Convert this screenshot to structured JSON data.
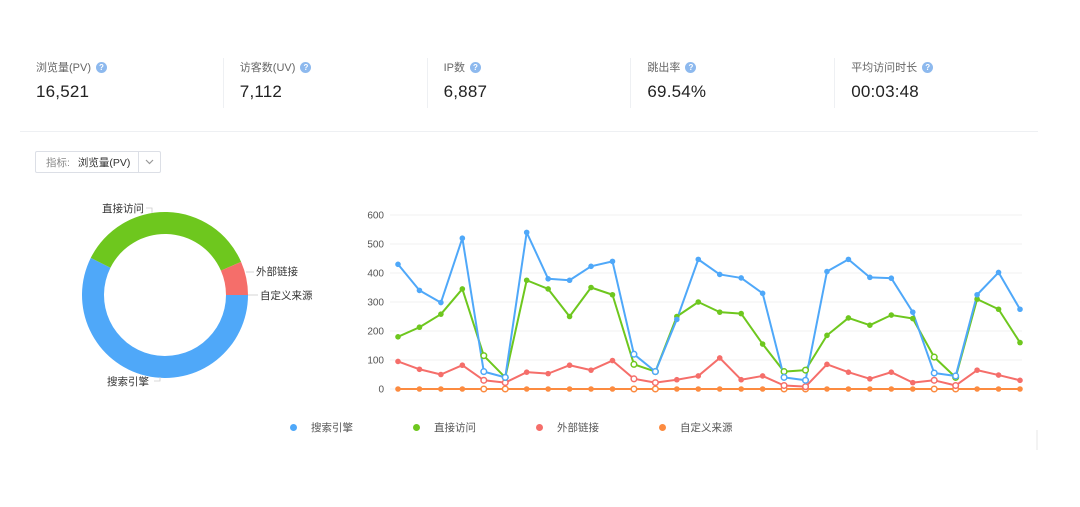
{
  "stats": [
    {
      "label": "浏览量(PV)",
      "value": "16,521",
      "help_icon": "question-circle-icon"
    },
    {
      "label": "访客数(UV)",
      "value": "7,112",
      "help_icon": "question-circle-icon"
    },
    {
      "label": "IP数",
      "value": "6,887",
      "help_icon": "question-circle-icon"
    },
    {
      "label": "跳出率",
      "value": "69.54%",
      "help_icon": "question-circle-icon"
    },
    {
      "label": "平均访问时长",
      "value": "00:03:48",
      "help_icon": "question-circle-icon"
    }
  ],
  "selector": {
    "label": "指标:",
    "value": "浏览量(PV)",
    "icon": "chevron-down-icon"
  },
  "colors": {
    "search": "#4fa8f9",
    "direct": "#6ec71e",
    "external": "#f56e6a",
    "custom": "#fc8b40"
  },
  "chart_data": [
    {
      "type": "pie",
      "subtype": "donut",
      "categories": [
        "搜索引擎",
        "直接访问",
        "外部链接",
        "自定义来源"
      ],
      "values": [
        9480,
        5960,
        1081,
        0
      ],
      "percent_estimate": [
        57.4,
        36.1,
        6.5,
        0.0
      ],
      "labels_visible": [
        "直接访问",
        "外部链接",
        "自定义来源",
        "搜索引擎"
      ]
    },
    {
      "type": "line",
      "title": "",
      "xlabel": "",
      "ylabel": "",
      "ylim": [
        0,
        600
      ],
      "yticks": [
        0,
        100,
        200,
        300,
        400,
        500,
        600
      ],
      "grid": true,
      "legend_position": "bottom",
      "x": [
        1,
        2,
        3,
        4,
        5,
        6,
        7,
        8,
        9,
        10,
        11,
        12,
        13,
        14,
        15,
        16,
        17,
        18,
        19,
        20,
        21,
        22,
        23,
        24,
        25,
        26,
        27,
        28,
        29,
        30
      ],
      "hollow_points": [
        4,
        5,
        11,
        12,
        18,
        19,
        25,
        26
      ],
      "series": [
        {
          "name": "搜索引擎",
          "color": "#4fa8f9",
          "values": [
            430,
            340,
            298,
            520,
            60,
            40,
            540,
            380,
            375,
            423,
            440,
            120,
            60,
            240,
            447,
            395,
            383,
            330,
            40,
            30,
            405,
            447,
            385,
            382,
            265,
            55,
            45,
            325,
            402,
            275
          ]
        },
        {
          "name": "直接访问",
          "color": "#6ec71e",
          "values": [
            180,
            213,
            258,
            345,
            115,
            40,
            375,
            345,
            250,
            350,
            325,
            85,
            60,
            250,
            300,
            265,
            260,
            155,
            60,
            65,
            185,
            245,
            220,
            255,
            243,
            110,
            40,
            310,
            275,
            160
          ]
        },
        {
          "name": "外部链接",
          "color": "#f56e6a",
          "values": [
            95,
            68,
            50,
            82,
            30,
            22,
            58,
            53,
            82,
            65,
            98,
            35,
            22,
            32,
            45,
            107,
            32,
            45,
            12,
            8,
            85,
            58,
            35,
            58,
            22,
            30,
            12,
            65,
            48,
            30
          ]
        },
        {
          "name": "自定义来源",
          "color": "#fc8b40",
          "values": [
            0,
            0,
            0,
            0,
            0,
            0,
            0,
            0,
            0,
            0,
            0,
            0,
            0,
            0,
            0,
            0,
            0,
            0,
            0,
            0,
            0,
            0,
            0,
            0,
            0,
            0,
            0,
            0,
            0,
            0
          ]
        }
      ]
    }
  ],
  "legend": [
    {
      "label": "搜索引擎",
      "color": "#4fa8f9"
    },
    {
      "label": "直接访问",
      "color": "#6ec71e"
    },
    {
      "label": "外部链接",
      "color": "#f56e6a"
    },
    {
      "label": "自定义来源",
      "color": "#fc8b40"
    }
  ]
}
